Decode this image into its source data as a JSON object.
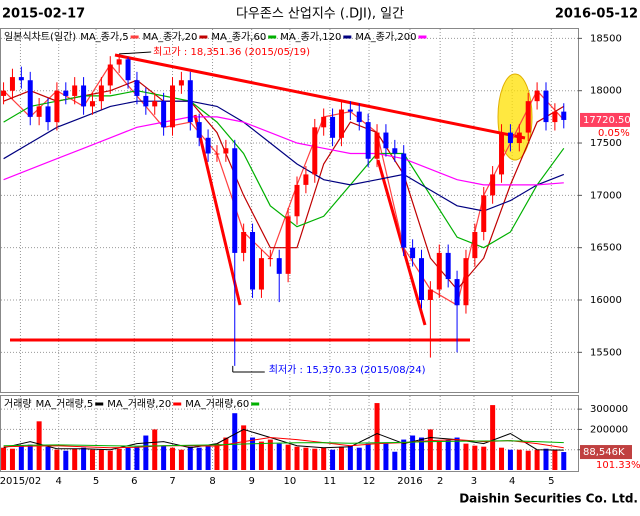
{
  "header": {
    "start_date": "2015-02-17",
    "title": "다우존스 산업지수 (.DJI), 일간",
    "end_date": "2016-05-12",
    "footer": "Daishin Securities Co. Ltd."
  },
  "chart_data": [
    {
      "type": "candlestick",
      "label": "일본식차트(일간)",
      "up_color": "#ff0000",
      "down_color": "#0000ff",
      "grid": true,
      "open": [
        17950,
        18000,
        18130,
        18100,
        17750,
        17850,
        17700,
        18000,
        17950,
        18050,
        17850,
        17900,
        18050,
        18250,
        18300,
        18100,
        17950,
        17850,
        17900,
        17650,
        18050,
        18100,
        17700,
        17550,
        17400,
        17400,
        17450,
        16450,
        16650,
        16100,
        16400,
        16400,
        16250,
        16800,
        17100,
        17200,
        17650,
        17750,
        17550,
        17820,
        17800,
        17700,
        17350,
        17600,
        17450,
        17400,
        16500,
        16400,
        16000,
        16100,
        16450,
        16200,
        15950,
        16400,
        16650,
        17000,
        17200,
        17600,
        17500,
        17600,
        17900,
        18000,
        17700,
        17800
      ],
      "high": [
        18080,
        18210,
        18230,
        18180,
        17930,
        17930,
        18080,
        18080,
        18130,
        18130,
        17980,
        18130,
        18330,
        18351.36,
        18320,
        18180,
        18030,
        17980,
        17980,
        18130,
        18180,
        18180,
        17780,
        17630,
        17480,
        17530,
        17530,
        16730,
        16730,
        16480,
        16480,
        16480,
        16880,
        17180,
        17280,
        17730,
        17830,
        17830,
        17900,
        17900,
        17880,
        17780,
        17680,
        17680,
        17530,
        17480,
        16580,
        16480,
        16180,
        16530,
        16530,
        16280,
        16480,
        16730,
        17080,
        17280,
        17680,
        17680,
        17680,
        17980,
        18080,
        18080,
        17880,
        17880
      ],
      "low": [
        17870,
        17920,
        18020,
        17670,
        17670,
        17620,
        17620,
        17870,
        17870,
        17770,
        17770,
        17820,
        17970,
        18170,
        18020,
        17870,
        17770,
        17770,
        17570,
        17570,
        17970,
        17620,
        17470,
        17320,
        17320,
        17320,
        15370.33,
        16370,
        16020,
        16020,
        16320,
        15980,
        16170,
        16720,
        17020,
        17120,
        17570,
        17470,
        17470,
        17720,
        17620,
        17270,
        17270,
        17370,
        17320,
        16420,
        16320,
        15920,
        15450,
        16020,
        16120,
        15500,
        15870,
        16320,
        16570,
        16920,
        17120,
        17420,
        17420,
        17520,
        17820,
        17620,
        17620,
        17640
      ],
      "close": [
        18000,
        18130,
        18100,
        17750,
        17850,
        17700,
        18000,
        17950,
        18050,
        17850,
        17900,
        18050,
        18250,
        18300,
        18100,
        17950,
        17850,
        17900,
        17650,
        18050,
        18100,
        17700,
        17550,
        17400,
        17400,
        17450,
        16450,
        16650,
        16100,
        16400,
        16400,
        16250,
        16800,
        17100,
        17200,
        17650,
        17750,
        17550,
        17820,
        17800,
        17700,
        17350,
        17600,
        17450,
        17400,
        16500,
        16400,
        16000,
        16100,
        16450,
        16200,
        15950,
        16400,
        16650,
        17000,
        17200,
        17600,
        17500,
        17600,
        17900,
        18000,
        17700,
        17800,
        17720.5
      ],
      "ma_x": [
        0,
        3,
        6,
        9,
        12,
        15,
        18,
        21,
        24,
        27,
        30,
        33,
        36,
        39,
        42,
        45,
        48,
        51,
        54,
        57,
        60,
        63
      ],
      "series": [
        {
          "name": "MA_종가,5",
          "color": "#ff4040",
          "values": [
            18000,
            17750,
            18000,
            17850,
            18250,
            17950,
            17650,
            17700,
            17400,
            16650,
            16400,
            17100,
            17750,
            17800,
            17600,
            16500,
            16100,
            15950,
            17000,
            17500,
            18000,
            17720.5
          ]
        },
        {
          "name": "MA_종가,20",
          "color": "#c00000",
          "values": [
            17900,
            18000,
            17900,
            17950,
            18000,
            18100,
            17900,
            17900,
            17600,
            17000,
            16500,
            16500,
            17300,
            17700,
            17600,
            17200,
            16400,
            16100,
            16400,
            17100,
            17700,
            17850
          ]
        },
        {
          "name": "MA_종가,60",
          "color": "#00b000",
          "values": [
            17700,
            17850,
            17900,
            17950,
            17950,
            18000,
            17950,
            17900,
            17700,
            17400,
            16900,
            16700,
            16800,
            17100,
            17400,
            17400,
            17000,
            16600,
            16500,
            16650,
            17100,
            17450
          ]
        },
        {
          "name": "MA_종가,120",
          "color": "#000080",
          "values": [
            17350,
            17500,
            17650,
            17750,
            17850,
            17900,
            17900,
            17900,
            17850,
            17700,
            17500,
            17300,
            17150,
            17100,
            17150,
            17200,
            17050,
            16900,
            16850,
            16950,
            17100,
            17200
          ]
        },
        {
          "name": "MA_종가,200",
          "color": "#ff00ff",
          "values": [
            17150,
            17250,
            17350,
            17450,
            17550,
            17650,
            17700,
            17750,
            17750,
            17700,
            17600,
            17500,
            17450,
            17400,
            17400,
            17350,
            17250,
            17150,
            17100,
            17100,
            17100,
            17120
          ]
        }
      ],
      "xlim": [
        -0.4,
        64.6
      ],
      "xticks": [
        {
          "value": 1.9,
          "label": "2015/02"
        },
        {
          "value": 6.2,
          "label": "4"
        },
        {
          "value": 10.4,
          "label": "5"
        },
        {
          "value": 14.7,
          "label": "6"
        },
        {
          "value": 19,
          "label": "7"
        },
        {
          "value": 23.5,
          "label": "8"
        },
        {
          "value": 27.9,
          "label": "9"
        },
        {
          "value": 32.2,
          "label": "10"
        },
        {
          "value": 36.7,
          "label": "11"
        },
        {
          "value": 41.1,
          "label": "12"
        },
        {
          "value": 45.7,
          "label": "2016"
        },
        {
          "value": 49.1,
          "label": "2"
        },
        {
          "value": 52.9,
          "label": "3"
        },
        {
          "value": 57.2,
          "label": "4"
        },
        {
          "value": 61.6,
          "label": "5"
        }
      ],
      "ylim": [
        15140,
        18580
      ],
      "yticks": [
        15500,
        16000,
        16500,
        17000,
        17500,
        18000,
        18500
      ],
      "high_label": "최고가 : 18,351.36 (2015/05/19)",
      "low_label": "최저가 : 15,370.33 (2015/08/24)",
      "last_value": {
        "value": 17720.5,
        "label": "17720.50"
      },
      "change_label": "0.05%"
    },
    {
      "type": "bar",
      "label": "거래량",
      "up_color": "#ff0000",
      "down_color": "#0000ff",
      "values": [
        110000,
        105000,
        120000,
        125000,
        240000,
        115000,
        100000,
        95000,
        105000,
        110000,
        100000,
        100000,
        95000,
        105000,
        110000,
        115000,
        170000,
        200000,
        120000,
        110000,
        100000,
        115000,
        110000,
        120000,
        130000,
        160000,
        280000,
        220000,
        160000,
        140000,
        150000,
        130000,
        125000,
        115000,
        110000,
        105000,
        110000,
        100000,
        115000,
        120000,
        110000,
        130000,
        330000,
        130000,
        90000,
        150000,
        170000,
        160000,
        200000,
        140000,
        150000,
        160000,
        130000,
        120000,
        115000,
        320000,
        110000,
        100000,
        100000,
        95000,
        100000,
        105000,
        100000,
        88546
      ],
      "series": [
        {
          "name": "MA_거래량,5",
          "color": "#000000",
          "values": [
            110000,
            140000,
            105000,
            105000,
            100000,
            130000,
            140000,
            110000,
            130000,
            200000,
            160000,
            120000,
            110000,
            115000,
            180000,
            130000,
            160000,
            150000,
            130000,
            180000,
            100000,
            98000
          ]
        },
        {
          "name": "MA_거래량,20",
          "color": "#ff0000",
          "values": [
            115000,
            118000,
            120000,
            115000,
            110000,
            112000,
            120000,
            120000,
            118000,
            140000,
            160000,
            150000,
            135000,
            120000,
            130000,
            135000,
            145000,
            150000,
            140000,
            145000,
            130000,
            110000
          ]
        },
        {
          "name": "MA_거래량,60",
          "color": "#00b000",
          "values": [
            120000,
            122000,
            124000,
            122000,
            120000,
            118000,
            120000,
            122000,
            124000,
            128000,
            132000,
            134000,
            135000,
            132000,
            134000,
            136000,
            140000,
            142000,
            143000,
            144000,
            140000,
            135000
          ]
        }
      ],
      "ylim": [
        0,
        355000
      ],
      "yticks": [
        100000,
        200000,
        300000
      ],
      "last_value": {
        "value": 88546,
        "label": "88,546K"
      },
      "ratio_label": "101.33%"
    }
  ]
}
